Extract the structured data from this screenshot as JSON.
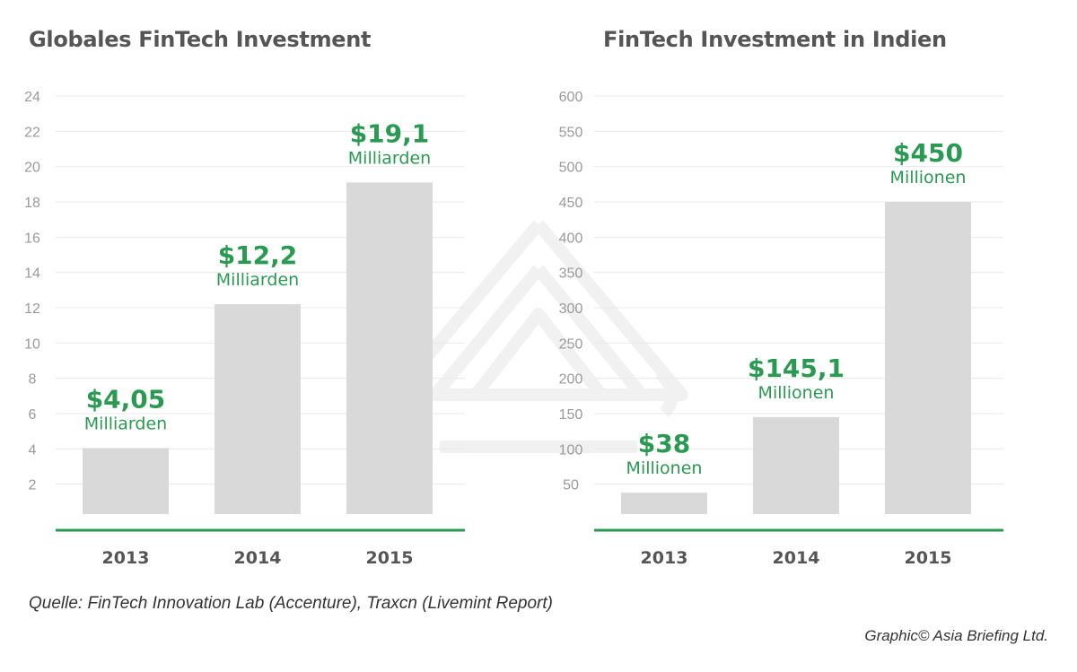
{
  "chart_data": [
    {
      "type": "bar",
      "title": "Globales FinTech Investment",
      "categories": [
        "2013",
        "2014",
        "2015"
      ],
      "values": [
        4.05,
        12.2,
        19.1
      ],
      "value_labels": [
        "$4,05",
        "$12,2",
        "$19,1"
      ],
      "unit_labels": [
        "Milliarden",
        "Milliarden",
        "Milliarden"
      ],
      "yticks": [
        2,
        4,
        6,
        8,
        10,
        12,
        14,
        16,
        18,
        20,
        22,
        24
      ],
      "ylim": [
        0,
        24
      ],
      "grid": true,
      "legend": "none",
      "colors": {
        "bar": "#d9d9d9",
        "axis": "#2a9a52",
        "label": "#2a9a52",
        "grid": "#e8e8e8"
      }
    },
    {
      "type": "bar",
      "title": "FinTech Investment in Indien",
      "categories": [
        "2013",
        "2014",
        "2015"
      ],
      "values": [
        38,
        145.1,
        450
      ],
      "value_labels": [
        "$38",
        "$145,1",
        "$450"
      ],
      "unit_labels": [
        "Millionen",
        "Millionen",
        "Millionen"
      ],
      "yticks": [
        50,
        100,
        150,
        200,
        250,
        300,
        350,
        400,
        450,
        500,
        550,
        600
      ],
      "ylim": [
        0,
        600
      ],
      "grid": true,
      "legend": "none",
      "colors": {
        "bar": "#d9d9d9",
        "axis": "#2a9a52",
        "label": "#2a9a52",
        "grid": "#e8e8e8"
      }
    }
  ],
  "footer": {
    "source": "Quelle: FinTech Innovation Lab (Accenture), Traxcn (Livemint Report)",
    "credit": "Graphic© Asia Briefing Ltd."
  },
  "watermark": {
    "icon": "asia-briefing-logo-icon"
  }
}
